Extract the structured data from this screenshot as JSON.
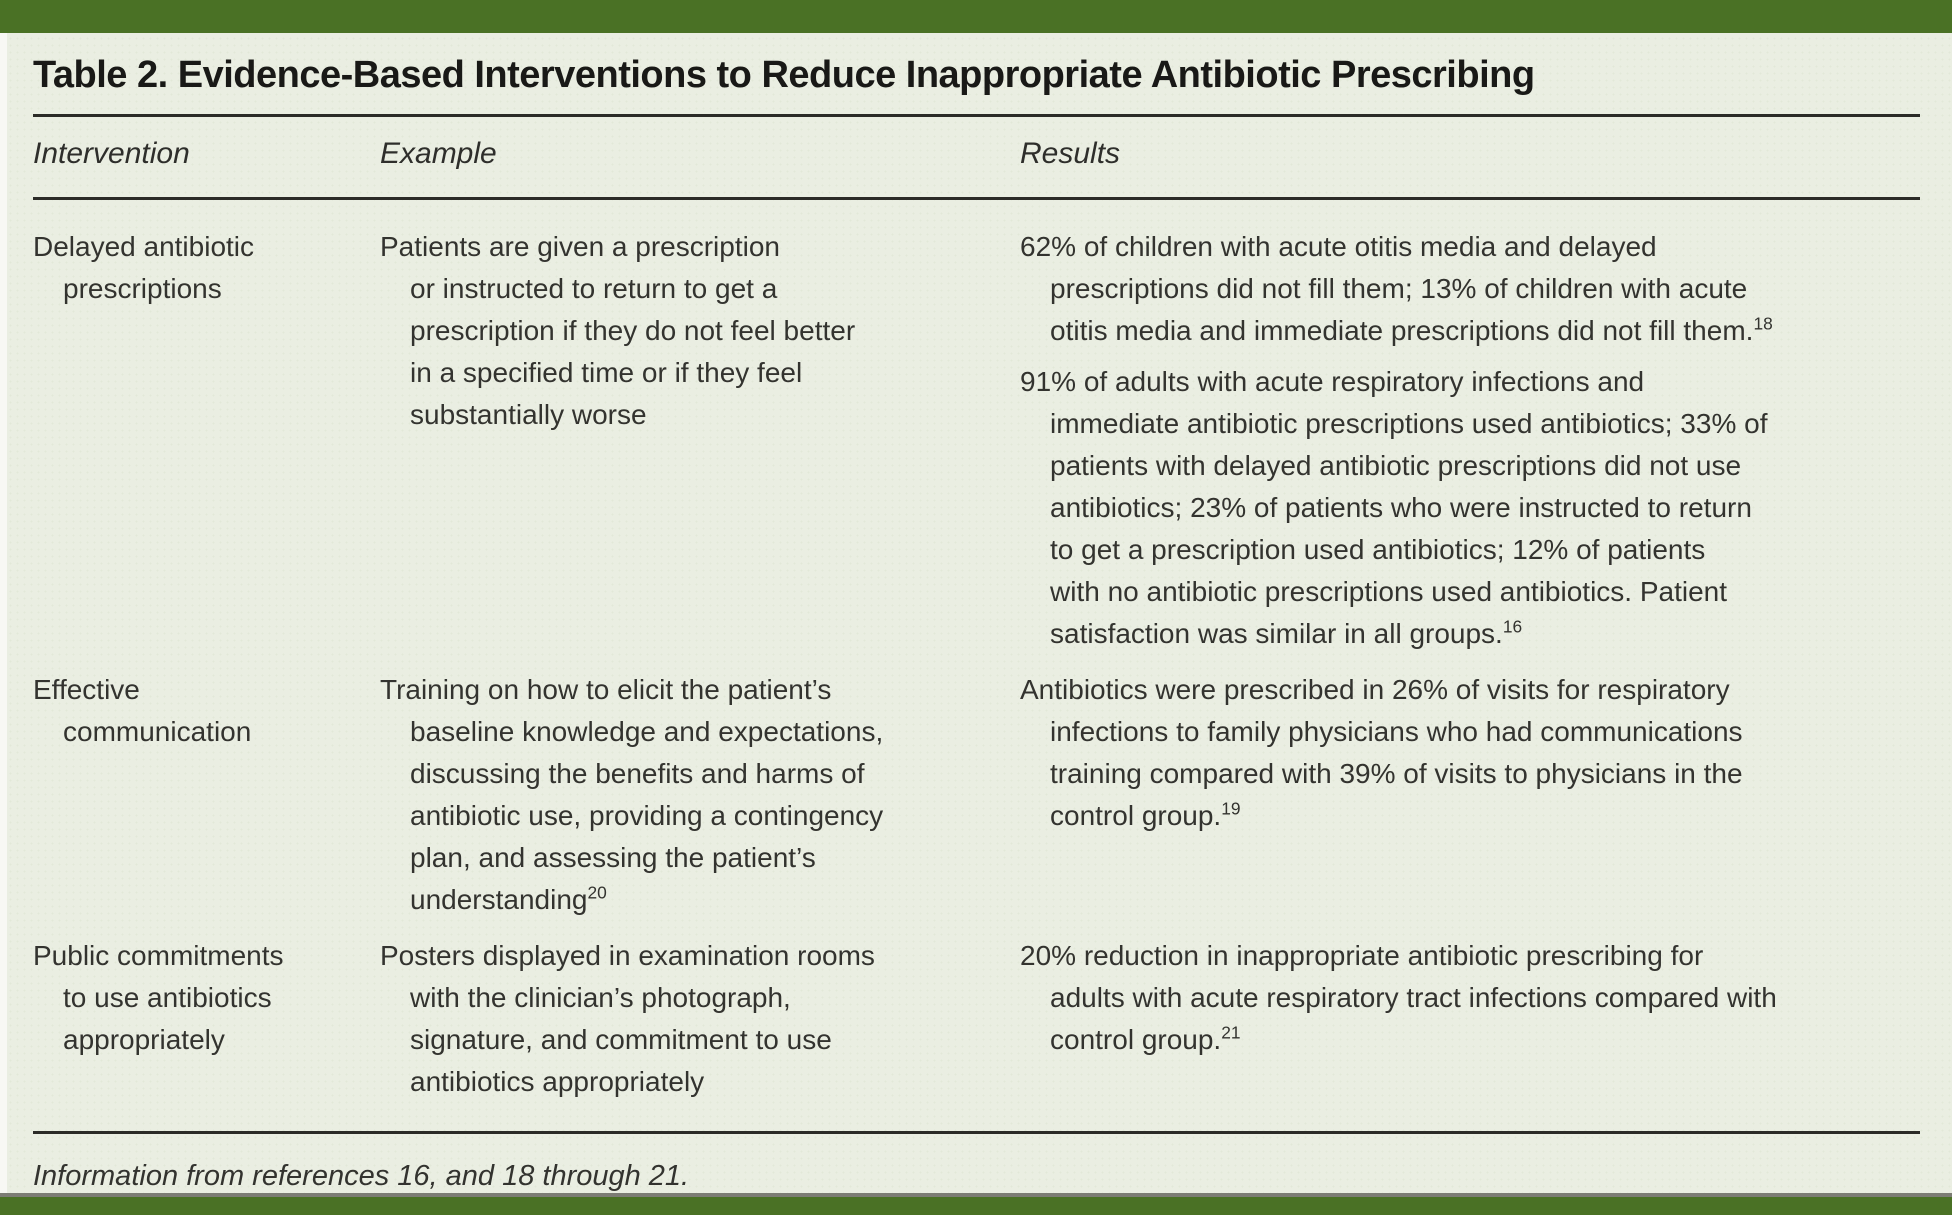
{
  "page": {
    "title": "Table 2. Evidence-Based Interventions to Reduce Inappropriate Antibiotic Prescribing",
    "footnote": "Information from references 16, and 18 through 21.",
    "colors": {
      "accent_bar": "#4a7125",
      "background": "#eaeee2",
      "rule": "#2b2b27",
      "text": "#33332f"
    }
  },
  "table": {
    "columns": [
      "Intervention",
      "Example",
      "Results"
    ],
    "rows": [
      {
        "intervention": "Delayed antibiotic\nprescriptions",
        "example": {
          "text": "Patients are given a prescription\nor instructed to return to get a\nprescription if they do not feel better\nin a specified time or if they feel\nsubstantially worse",
          "ref": ""
        },
        "results": [
          {
            "text": "62% of children with acute otitis media and delayed\nprescriptions did not fill them; 13% of children with acute\notitis media and immediate prescriptions did not fill them.",
            "ref": "18"
          },
          {
            "text": "91% of adults with acute respiratory infections and\nimmediate antibiotic prescriptions used antibiotics; 33% of\npatients with delayed antibiotic prescriptions did not use\nantibiotics; 23% of patients who were instructed to return\nto get a prescription used antibiotics; 12% of patients\nwith no antibiotic prescriptions used antibiotics. Patient\nsatisfaction was similar in all groups.",
            "ref": "16"
          }
        ]
      },
      {
        "intervention": "Effective\ncommunication",
        "example": {
          "text": "Training on how to elicit the patient’s\nbaseline knowledge and expectations,\ndiscussing the benefits and harms of\nantibiotic use, providing a contingency\nplan, and assessing the patient’s\nunderstanding",
          "ref": "20"
        },
        "results": [
          {
            "text": "Antibiotics were prescribed in 26% of visits for respiratory\ninfections to family physicians who had communications\ntraining compared with 39% of visits to physicians in the\ncontrol group.",
            "ref": "19"
          }
        ]
      },
      {
        "intervention": "Public commitments\nto use antibiotics\nappropriately",
        "example": {
          "text": "Posters displayed in examination rooms\nwith the clinician’s photograph,\nsignature, and commitment to use\nantibiotics appropriately",
          "ref": ""
        },
        "results": [
          {
            "text": "20% reduction in inappropriate antibiotic prescribing for\nadults with acute respiratory tract infections compared with\ncontrol group.",
            "ref": "21"
          }
        ]
      }
    ]
  }
}
